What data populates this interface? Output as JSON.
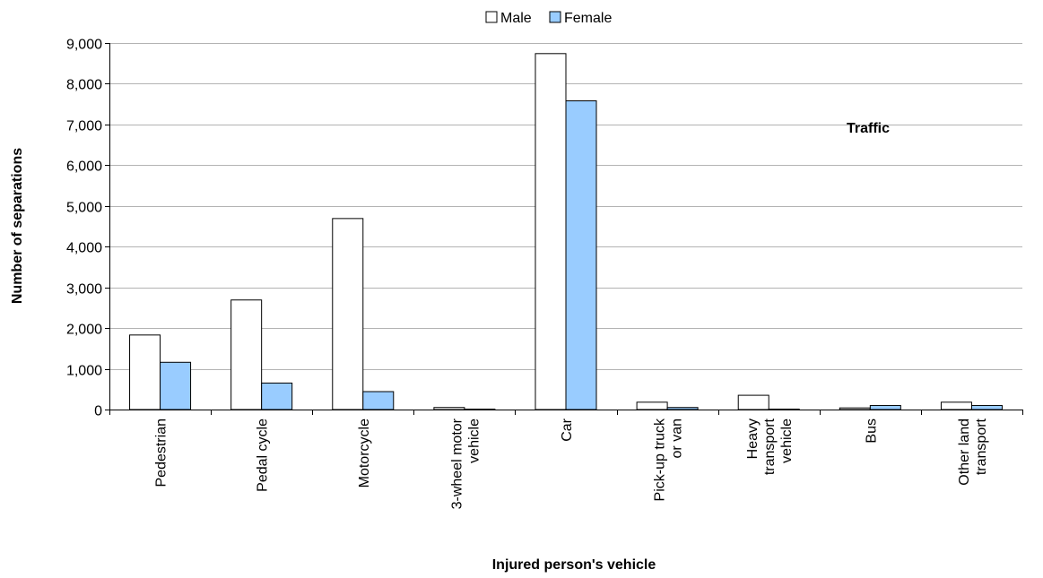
{
  "chart_data": {
    "type": "bar",
    "title": "",
    "xlabel": "Injured person's vehicle",
    "ylabel": "Number of separations",
    "annotation": "Traffic",
    "ylim": [
      0,
      9000
    ],
    "y_ticks": [
      0,
      1000,
      2000,
      3000,
      4000,
      5000,
      6000,
      7000,
      8000,
      9000
    ],
    "y_tick_labels": [
      "0",
      "1,000",
      "2,000",
      "3,000",
      "4,000",
      "5,000",
      "6,000",
      "7,000",
      "8,000",
      "9,000"
    ],
    "grid": true,
    "legend_position": "top-center",
    "categories": [
      [
        "Pedestrian"
      ],
      [
        "Pedal cycle"
      ],
      [
        "Motorcycle"
      ],
      [
        "3-wheel motor",
        "vehicle"
      ],
      [
        "Car"
      ],
      [
        "Pick-up truck",
        "or van"
      ],
      [
        "Heavy",
        "transport",
        "vehicle"
      ],
      [
        "Bus"
      ],
      [
        "Other land",
        "transport"
      ]
    ],
    "series": [
      {
        "name": "Male",
        "color": "#ffffff",
        "values": [
          1830,
          2690,
          4690,
          50,
          8740,
          180,
          350,
          40,
          180
        ]
      },
      {
        "name": "Female",
        "color": "#99ccff",
        "values": [
          1160,
          650,
          440,
          10,
          7580,
          50,
          10,
          100,
          100
        ]
      }
    ]
  }
}
